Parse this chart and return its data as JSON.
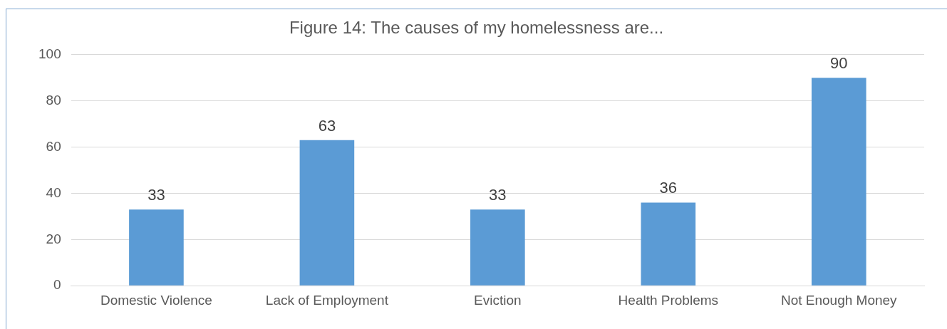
{
  "chart_data": {
    "type": "bar",
    "title": "Figure 14: The causes of my homelessness are...",
    "categories": [
      "Domestic Violence",
      "Lack of Employment",
      "Eviction",
      "Health Problems",
      "Not Enough Money"
    ],
    "values": [
      33,
      63,
      33,
      36,
      90
    ],
    "color": "#5b9bd5",
    "ylim": [
      0,
      100
    ],
    "yticks": [
      0,
      20,
      40,
      60,
      80,
      100
    ],
    "grid": "y",
    "data_labels": true
  }
}
